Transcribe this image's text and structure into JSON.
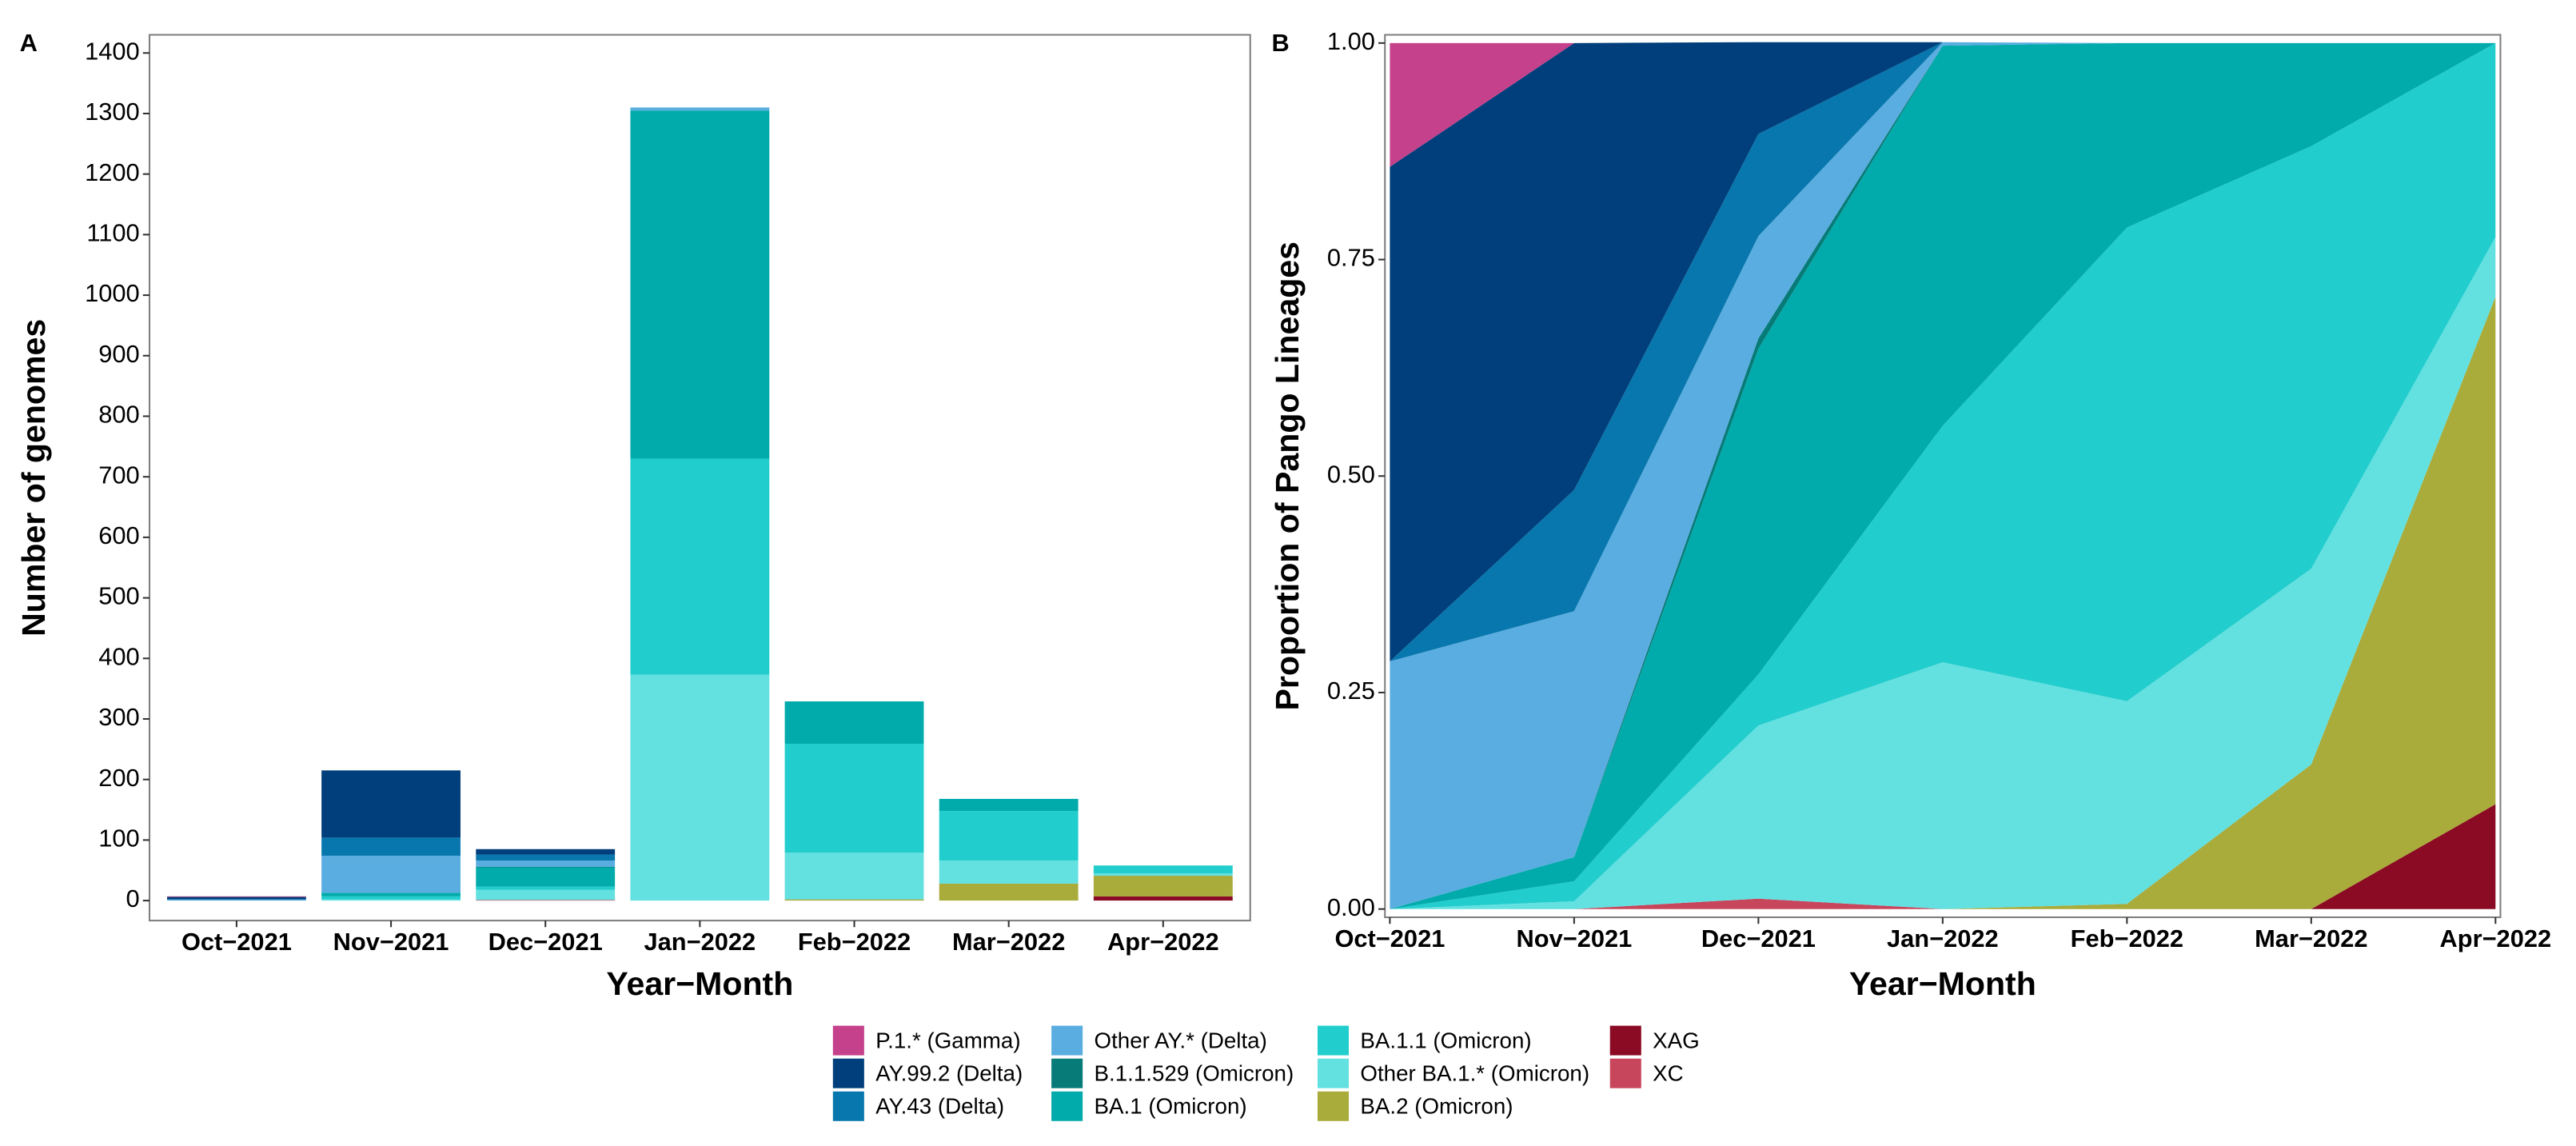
{
  "chart_data": [
    {
      "type": "bar",
      "stacked": true,
      "panel_label": "A",
      "x_label": "Year−Month",
      "y_label": "Number of genomes",
      "categories": [
        "Oct−2021",
        "Nov−2021",
        "Dec−2021",
        "Jan−2022",
        "Feb−2022",
        "Mar−2022",
        "Apr−2022"
      ],
      "series": [
        {
          "name": "P.1.* (Gamma)",
          "color": "#c5418c",
          "values": [
            1,
            0,
            0,
            0,
            0,
            0,
            0
          ]
        },
        {
          "name": "AY.99.2  (Delta)",
          "color": "#003f7b",
          "values": [
            4,
            111,
            9,
            0,
            0,
            0,
            0
          ]
        },
        {
          "name": "AY.43  (Delta)",
          "color": "#0877ad",
          "values": [
            0,
            30,
            10,
            0,
            0,
            0,
            0
          ]
        },
        {
          "name": "Other AY.*  (Delta)",
          "color": "#5aade0",
          "values": [
            2,
            61,
            10,
            5,
            0,
            0,
            0
          ]
        },
        {
          "name": "B.1.1.529 (Omicron)",
          "color": "#077b78",
          "values": [
            0,
            0,
            1,
            0,
            0,
            0,
            0
          ]
        },
        {
          "name": "BA.1 (Omicron)",
          "color": "#01abab",
          "values": [
            0,
            6,
            32,
            575,
            70,
            20,
            0
          ]
        },
        {
          "name": "BA.1.1 (Omicron)",
          "color": "#22cdcd",
          "values": [
            0,
            5,
            5,
            357,
            180,
            82,
            13
          ]
        },
        {
          "name": "Other BA.1.* (Omicron)",
          "color": "#63e0e0",
          "values": [
            0,
            2,
            17,
            373,
            77,
            38,
            4
          ]
        },
        {
          "name": "BA.2 (Omicron)",
          "color": "#a9ab3b",
          "values": [
            0,
            0,
            0,
            0,
            2,
            28,
            34
          ]
        },
        {
          "name": "XAG",
          "color": "#8a0b23",
          "values": [
            0,
            0,
            0,
            0,
            0,
            0,
            7
          ]
        },
        {
          "name": "XC",
          "color": "#c8465b",
          "values": [
            0,
            0,
            1,
            0,
            0,
            0,
            0
          ]
        }
      ],
      "ylim": [
        -33,
        1430
      ],
      "yticks": [
        0,
        100,
        200,
        300,
        400,
        500,
        600,
        700,
        800,
        900,
        1000,
        1100,
        1200,
        1300,
        1400
      ]
    },
    {
      "type": "area",
      "stacked": true,
      "panel_label": "B",
      "x_label": "Year−Month",
      "y_label": "Proportion of Pango Lineages",
      "categories": [
        "Oct−2021",
        "Nov−2021",
        "Dec−2021",
        "Jan−2022",
        "Feb−2022",
        "Mar−2022",
        "Apr−2022"
      ],
      "series": [
        {
          "values": [
            0.143,
            0,
            0,
            0,
            0,
            0,
            0
          ]
        },
        {
          "values": [
            0.571,
            0.516,
            0.106,
            0,
            0,
            0,
            0
          ]
        },
        {
          "values": [
            0,
            0.14,
            0.118,
            0,
            0,
            0,
            0
          ]
        },
        {
          "values": [
            0.286,
            0.284,
            0.118,
            0.004,
            0,
            0,
            0
          ]
        },
        {
          "values": [
            0,
            0,
            0.012,
            0,
            0,
            0,
            0
          ]
        },
        {
          "values": [
            0,
            0.028,
            0.376,
            0.439,
            0.213,
            0.119,
            0
          ]
        },
        {
          "values": [
            0,
            0.023,
            0.059,
            0.273,
            0.547,
            0.488,
            0.224
          ]
        },
        {
          "values": [
            0,
            0.009,
            0.2,
            0.285,
            0.234,
            0.226,
            0.069
          ]
        },
        {
          "values": [
            0,
            0,
            0,
            0,
            0.006,
            0.167,
            0.586
          ]
        },
        {
          "values": [
            0,
            0,
            0,
            0,
            0,
            0,
            0.121
          ]
        },
        {
          "values": [
            0,
            0,
            0.012,
            0,
            0,
            0,
            0
          ]
        }
      ],
      "ylim": [
        -0.0095,
        1.0095
      ],
      "yticks": [
        {
          "value": 0,
          "label": "0.00"
        },
        {
          "value": 0.25,
          "label": "0.25"
        },
        {
          "value": 0.5,
          "label": "0.50"
        },
        {
          "value": 0.75,
          "label": "0.75"
        },
        {
          "value": 1,
          "label": "1.00"
        }
      ]
    }
  ]
}
